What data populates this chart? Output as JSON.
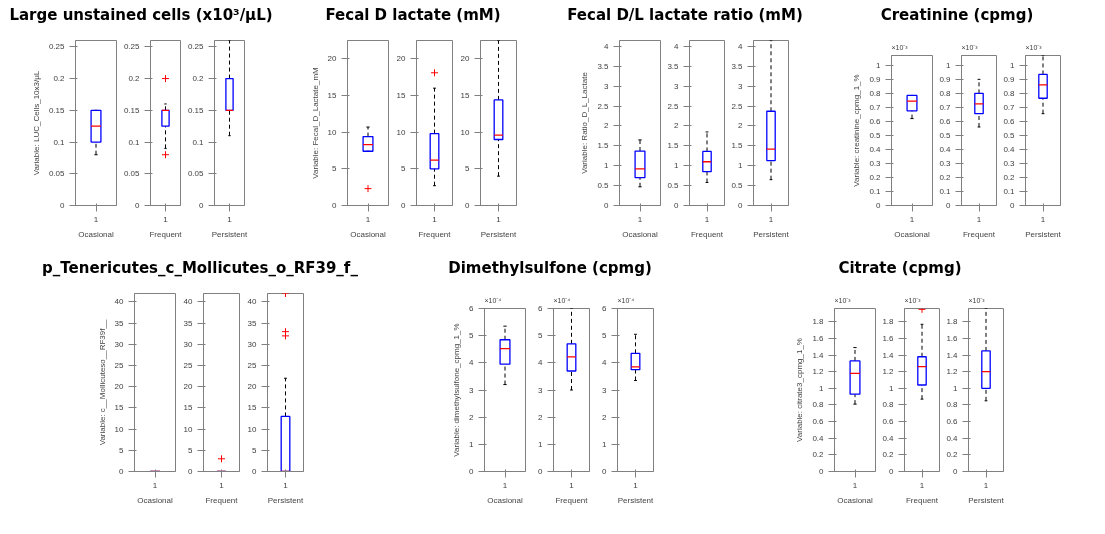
{
  "chart_data": [
    {
      "type": "box",
      "title": "Large unstained cells (x10³/µL)",
      "ylabel": "Variable: LUC_Cells_10x3/µL",
      "xlabel": "Ocasional",
      "categories": [
        "1"
      ],
      "ylim": [
        0,
        0.26
      ],
      "yticks": [
        0,
        0.05,
        0.1,
        0.15,
        0.2,
        0.25
      ],
      "grid": false,
      "marker": "cross",
      "series": [
        {
          "color": "#0000ff",
          "boxes": [
            {
              "low": 0.08,
              "q1": 0.1,
              "median": 0.125,
              "q3": 0.15,
              "high": 0.15
            }
          ]
        }
      ]
    },
    {
      "type": "box",
      "xlabel": "Frequent",
      "categories": [
        "1"
      ],
      "ylim": [
        0,
        0.26
      ],
      "yticks": [
        0,
        0.05,
        0.1,
        0.15,
        0.2,
        0.25
      ],
      "grid": false,
      "marker": "cross",
      "series": [
        {
          "color": "#0000ff",
          "boxes": [
            {
              "low": 0.09,
              "q1": 0.125,
              "median": 0.15,
              "q3": 0.15,
              "high": 0.16,
              "outliers": [
                0.2,
                0.08
              ]
            }
          ]
        }
      ]
    },
    {
      "type": "box",
      "xlabel": "Persistent",
      "categories": [
        "1"
      ],
      "ylim": [
        0,
        0.26
      ],
      "yticks": [
        0,
        0.05,
        0.1,
        0.15,
        0.2,
        0.25
      ],
      "grid": false,
      "marker": "cross",
      "series": [
        {
          "color": "#0000ff",
          "boxes": [
            {
              "low": 0.11,
              "q1": 0.15,
              "median": 0.15,
              "q3": 0.2,
              "high": 0.26
            }
          ]
        }
      ]
    },
    {
      "type": "box",
      "title": "Fecal D lactate (mM)",
      "ylabel": "Variable: Fecal_D_Lactate_mM",
      "xlabel": "Ocasional",
      "categories": [
        "1"
      ],
      "ylim": [
        0,
        22.5
      ],
      "yticks": [
        0,
        5,
        10,
        15,
        20
      ],
      "grid": false,
      "marker": "cross",
      "series": [
        {
          "color": "#0000ff",
          "boxes": [
            {
              "low": 7.4,
              "q1": 7.4,
              "median": 8.3,
              "q3": 9.4,
              "high": 10.7,
              "outliers": [
                2.3
              ]
            }
          ]
        }
      ]
    },
    {
      "type": "box",
      "xlabel": "Frequent",
      "categories": [
        "1"
      ],
      "ylim": [
        0,
        22.5
      ],
      "yticks": [
        0,
        5,
        10,
        15,
        20
      ],
      "grid": false,
      "marker": "cross",
      "series": [
        {
          "color": "#0000ff",
          "boxes": [
            {
              "low": 2.7,
              "q1": 5.0,
              "median": 6.2,
              "q3": 9.8,
              "high": 16,
              "outliers": [
                18.1
              ]
            }
          ]
        }
      ]
    },
    {
      "type": "box",
      "xlabel": "Persistent",
      "categories": [
        "1"
      ],
      "ylim": [
        0,
        22.5
      ],
      "yticks": [
        0,
        5,
        10,
        15,
        20
      ],
      "grid": false,
      "marker": "cross",
      "series": [
        {
          "color": "#0000ff",
          "boxes": [
            {
              "low": 4.0,
              "q1": 9.0,
              "median": 9.6,
              "q3": 14.4,
              "high": 22.5
            }
          ]
        }
      ]
    },
    {
      "type": "box",
      "title": "Fecal D/L lactate ratio (mM)",
      "ylabel": "Variable: Ratio_D_L_Lactate",
      "xlabel": "Ocasional",
      "categories": [
        "1"
      ],
      "ylim": [
        0,
        4.15
      ],
      "yticks": [
        0,
        0.5,
        1,
        1.5,
        2,
        2.5,
        3,
        3.5,
        4
      ],
      "grid": false,
      "marker": "cross",
      "series": [
        {
          "color": "#0000ff",
          "boxes": [
            {
              "low": 0.47,
              "q1": 0.7,
              "median": 0.92,
              "q3": 1.37,
              "high": 1.65
            }
          ]
        }
      ]
    },
    {
      "type": "box",
      "xlabel": "Frequent",
      "categories": [
        "1"
      ],
      "ylim": [
        0,
        4.15
      ],
      "yticks": [
        0,
        0.5,
        1,
        1.5,
        2,
        2.5,
        3,
        3.5,
        4
      ],
      "grid": false,
      "marker": "cross",
      "series": [
        {
          "color": "#0000ff",
          "boxes": [
            {
              "low": 0.58,
              "q1": 0.85,
              "median": 1.1,
              "q3": 1.36,
              "high": 1.85
            }
          ]
        }
      ]
    },
    {
      "type": "box",
      "xlabel": "Persistent",
      "categories": [
        "1"
      ],
      "ylim": [
        0,
        4.15
      ],
      "yticks": [
        0,
        0.5,
        1,
        1.5,
        2,
        2.5,
        3,
        3.5,
        4
      ],
      "grid": false,
      "marker": "cross",
      "series": [
        {
          "color": "#0000ff",
          "boxes": [
            {
              "low": 0.65,
              "q1": 1.13,
              "median": 1.42,
              "q3": 2.37,
              "high": 4.15
            }
          ]
        }
      ]
    },
    {
      "type": "box",
      "title": "Creatinine (cpmg)",
      "ylabel": "Variable: creatinine_cpmg_1_%",
      "xlabel": "Ocasional",
      "annotations": [
        "×10⁻³"
      ],
      "categories": [
        "1"
      ],
      "ylim": [
        0,
        1.07
      ],
      "yticks": [
        0,
        0.1,
        0.2,
        0.3,
        0.4,
        0.5,
        0.6,
        0.7,
        0.8,
        0.9,
        1
      ],
      "grid": false,
      "marker": "cross",
      "series": [
        {
          "color": "#0000ff",
          "boxes": [
            {
              "low": 0.62,
              "q1": 0.675,
              "median": 0.745,
              "q3": 0.785,
              "high": 0.785
            }
          ]
        }
      ]
    },
    {
      "type": "box",
      "xlabel": "Frequent",
      "annotations": [
        "×10⁻³"
      ],
      "categories": [
        "1"
      ],
      "ylim": [
        0,
        1.07
      ],
      "yticks": [
        0,
        0.1,
        0.2,
        0.3,
        0.4,
        0.5,
        0.6,
        0.7,
        0.8,
        0.9,
        1
      ],
      "grid": false,
      "marker": "cross",
      "series": [
        {
          "color": "#0000ff",
          "boxes": [
            {
              "low": 0.56,
              "q1": 0.655,
              "median": 0.725,
              "q3": 0.8,
              "high": 0.9
            }
          ]
        }
      ]
    },
    {
      "type": "box",
      "xlabel": "Persistent",
      "annotations": [
        "×10⁻³"
      ],
      "categories": [
        "1"
      ],
      "ylim": [
        0,
        1.07
      ],
      "yticks": [
        0,
        0.1,
        0.2,
        0.3,
        0.4,
        0.5,
        0.6,
        0.7,
        0.8,
        0.9,
        1
      ],
      "grid": false,
      "marker": "cross",
      "series": [
        {
          "color": "#0000ff",
          "boxes": [
            {
              "low": 0.655,
              "q1": 0.765,
              "median": 0.86,
              "q3": 0.935,
              "high": 1.07
            }
          ]
        }
      ]
    },
    {
      "type": "box",
      "title": "p_Tenericutes_c_Mollicutes_o_RF39_f_",
      "ylabel": "Variable: c__Mollicuteso__RF39f__",
      "xlabel": "Ocasional",
      "categories": [
        "1"
      ],
      "ylim": [
        0,
        42
      ],
      "yticks": [
        0,
        5,
        10,
        15,
        20,
        25,
        30,
        35,
        40
      ],
      "grid": false,
      "marker": "cross",
      "series": [
        {
          "color": "#0000ff",
          "boxes": [
            {
              "low": 0,
              "q1": 0,
              "median": 0,
              "q3": 0,
              "high": 0
            }
          ]
        }
      ]
    },
    {
      "type": "box",
      "xlabel": "Frequent",
      "categories": [
        "1"
      ],
      "ylim": [
        0,
        42
      ],
      "yticks": [
        0,
        5,
        10,
        15,
        20,
        25,
        30,
        35,
        40
      ],
      "grid": false,
      "marker": "cross",
      "series": [
        {
          "color": "#0000ff",
          "boxes": [
            {
              "low": 0,
              "q1": 0,
              "median": 0,
              "q3": 0,
              "high": 0,
              "outliers": [
                3
              ]
            }
          ]
        }
      ]
    },
    {
      "type": "box",
      "xlabel": "Persistent",
      "categories": [
        "1"
      ],
      "ylim": [
        0,
        42
      ],
      "yticks": [
        0,
        5,
        10,
        15,
        20,
        25,
        30,
        35,
        40
      ],
      "grid": false,
      "marker": "cross",
      "series": [
        {
          "color": "#0000ff",
          "boxes": [
            {
              "low": 0,
              "q1": 0,
              "median": 0,
              "q3": 13,
              "high": 22,
              "outliers": [
                32,
                33,
                42
              ]
            }
          ]
        }
      ]
    },
    {
      "type": "box",
      "title": "Dimethylsulfone (cpmg)",
      "ylabel": "Variable: dimethylsulfone_cpmg_1_%",
      "xlabel": "Ocasional",
      "annotations": [
        "×10⁻⁴"
      ],
      "categories": [
        "1"
      ],
      "ylim": [
        0,
        6
      ],
      "yticks": [
        0,
        1,
        2,
        3,
        4,
        5,
        6
      ],
      "grid": false,
      "marker": "cross",
      "series": [
        {
          "color": "#0000ff",
          "boxes": [
            {
              "low": 3.2,
              "q1": 3.95,
              "median": 4.52,
              "q3": 4.85,
              "high": 5.35
            }
          ]
        }
      ]
    },
    {
      "type": "box",
      "xlabel": "Frequent",
      "annotations": [
        "×10⁻⁴"
      ],
      "categories": [
        "1"
      ],
      "ylim": [
        0,
        6
      ],
      "yticks": [
        0,
        1,
        2,
        3,
        4,
        5,
        6
      ],
      "grid": false,
      "marker": "cross",
      "series": [
        {
          "color": "#0000ff",
          "boxes": [
            {
              "low": 3.0,
              "q1": 3.7,
              "median": 4.22,
              "q3": 4.7,
              "high": 6.0
            }
          ]
        }
      ]
    },
    {
      "type": "box",
      "xlabel": "Persistent",
      "annotations": [
        "×10⁻⁴"
      ],
      "categories": [
        "1"
      ],
      "ylim": [
        0,
        6
      ],
      "yticks": [
        0,
        1,
        2,
        3,
        4,
        5,
        6
      ],
      "grid": false,
      "marker": "cross",
      "series": [
        {
          "color": "#0000ff",
          "boxes": [
            {
              "low": 3.35,
              "q1": 3.75,
              "median": 3.85,
              "q3": 4.35,
              "high": 5.05
            }
          ]
        }
      ]
    },
    {
      "type": "box",
      "title": "Citrate (cpmg)",
      "ylabel": "Variable: citrate3_cpmg_1_%",
      "xlabel": "Ocasional",
      "annotations": [
        "×10⁻³"
      ],
      "categories": [
        "1"
      ],
      "ylim": [
        0,
        1.96
      ],
      "yticks": [
        0,
        0.2,
        0.4,
        0.6,
        0.8,
        1,
        1.2,
        1.4,
        1.6,
        1.8
      ],
      "grid": false,
      "marker": "cross",
      "series": [
        {
          "color": "#0000ff",
          "boxes": [
            {
              "low": 0.81,
              "q1": 0.93,
              "median": 1.18,
              "q3": 1.33,
              "high": 1.49
            }
          ]
        }
      ]
    },
    {
      "type": "box",
      "xlabel": "Frequent",
      "annotations": [
        "×10⁻³"
      ],
      "categories": [
        "1"
      ],
      "ylim": [
        0,
        1.96
      ],
      "yticks": [
        0,
        0.2,
        0.4,
        0.6,
        0.8,
        1,
        1.2,
        1.4,
        1.6,
        1.8
      ],
      "grid": false,
      "marker": "cross",
      "series": [
        {
          "color": "#0000ff",
          "boxes": [
            {
              "low": 0.87,
              "q1": 1.04,
              "median": 1.26,
              "q3": 1.38,
              "high": 1.77,
              "outliers": [
                1.95
              ]
            }
          ]
        }
      ]
    },
    {
      "type": "box",
      "xlabel": "Persistent",
      "annotations": [
        "×10⁻³"
      ],
      "categories": [
        "1"
      ],
      "ylim": [
        0,
        1.96
      ],
      "yticks": [
        0,
        0.2,
        0.4,
        0.6,
        0.8,
        1,
        1.2,
        1.4,
        1.6,
        1.8
      ],
      "grid": false,
      "marker": "cross",
      "series": [
        {
          "color": "#0000ff",
          "boxes": [
            {
              "low": 0.85,
              "q1": 1.0,
              "median": 1.2,
              "q3": 1.45,
              "high": 1.96
            }
          ]
        }
      ]
    }
  ]
}
